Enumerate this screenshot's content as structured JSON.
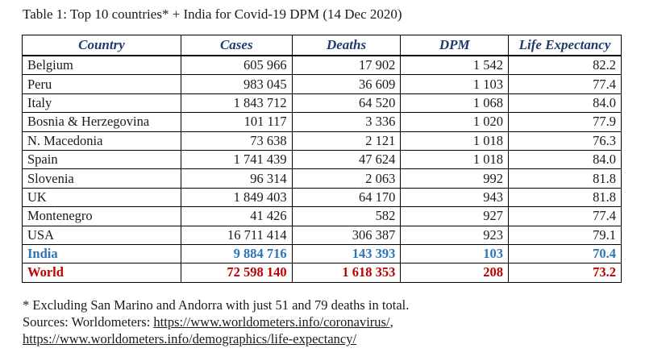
{
  "caption": "Table 1: Top 10 countries* + India for Covid-19 DPM (14 Dec 2020)",
  "headers": [
    "Country",
    "Cases",
    "Deaths",
    "DPM",
    "Life Expectancy"
  ],
  "rows": [
    {
      "country": "Belgium",
      "cases": "605 966",
      "deaths": "17 902",
      "dpm": "1 542",
      "life": "82.2"
    },
    {
      "country": "Peru",
      "cases": "983 045",
      "deaths": "36 609",
      "dpm": "1 103",
      "life": "77.4"
    },
    {
      "country": "Italy",
      "cases": "1 843 712",
      "deaths": "64 520",
      "dpm": "1 068",
      "life": "84.0"
    },
    {
      "country": "Bosnia & Herzegovina",
      "cases": "101 117",
      "deaths": "3 336",
      "dpm": "1 020",
      "life": "77.9"
    },
    {
      "country": "N. Macedonia",
      "cases": "73 638",
      "deaths": "2 121",
      "dpm": "1 018",
      "life": "76.3"
    },
    {
      "country": "Spain",
      "cases": "1 741 439",
      "deaths": "47 624",
      "dpm": "1 018",
      "life": "84.0"
    },
    {
      "country": "Slovenia",
      "cases": "96 314",
      "deaths": "2 063",
      "dpm": "992",
      "life": "81.8"
    },
    {
      "country": "UK",
      "cases": "1 849 403",
      "deaths": "64 170",
      "dpm": "943",
      "life": "81.8"
    },
    {
      "country": "Montenegro",
      "cases": "41 426",
      "deaths": "582",
      "dpm": "927",
      "life": "77.4"
    },
    {
      "country": "USA",
      "cases": "16 711 414",
      "deaths": "306 387",
      "dpm": "923",
      "life": "79.1"
    }
  ],
  "india": {
    "country": "India",
    "cases": "9 884 716",
    "deaths": "143 393",
    "dpm": "103",
    "life": "70.4"
  },
  "world": {
    "country": "World",
    "cases": "72 598 140",
    "deaths": "1 618 353",
    "dpm": "208",
    "life": "73.2"
  },
  "colors": {
    "header": "#1f3b6b",
    "india": "#2e75b6",
    "world": "#c00000"
  },
  "footnote": "* Excluding San Marino and Andorra with just 51 and 79 deaths in total.",
  "sources_label": "Sources: Worldometers: ",
  "link1": "https://www.worldometers.info/coronavirus/",
  "link_sep": ",",
  "link2": "https://www.worldometers.info/demographics/life-expectancy/"
}
